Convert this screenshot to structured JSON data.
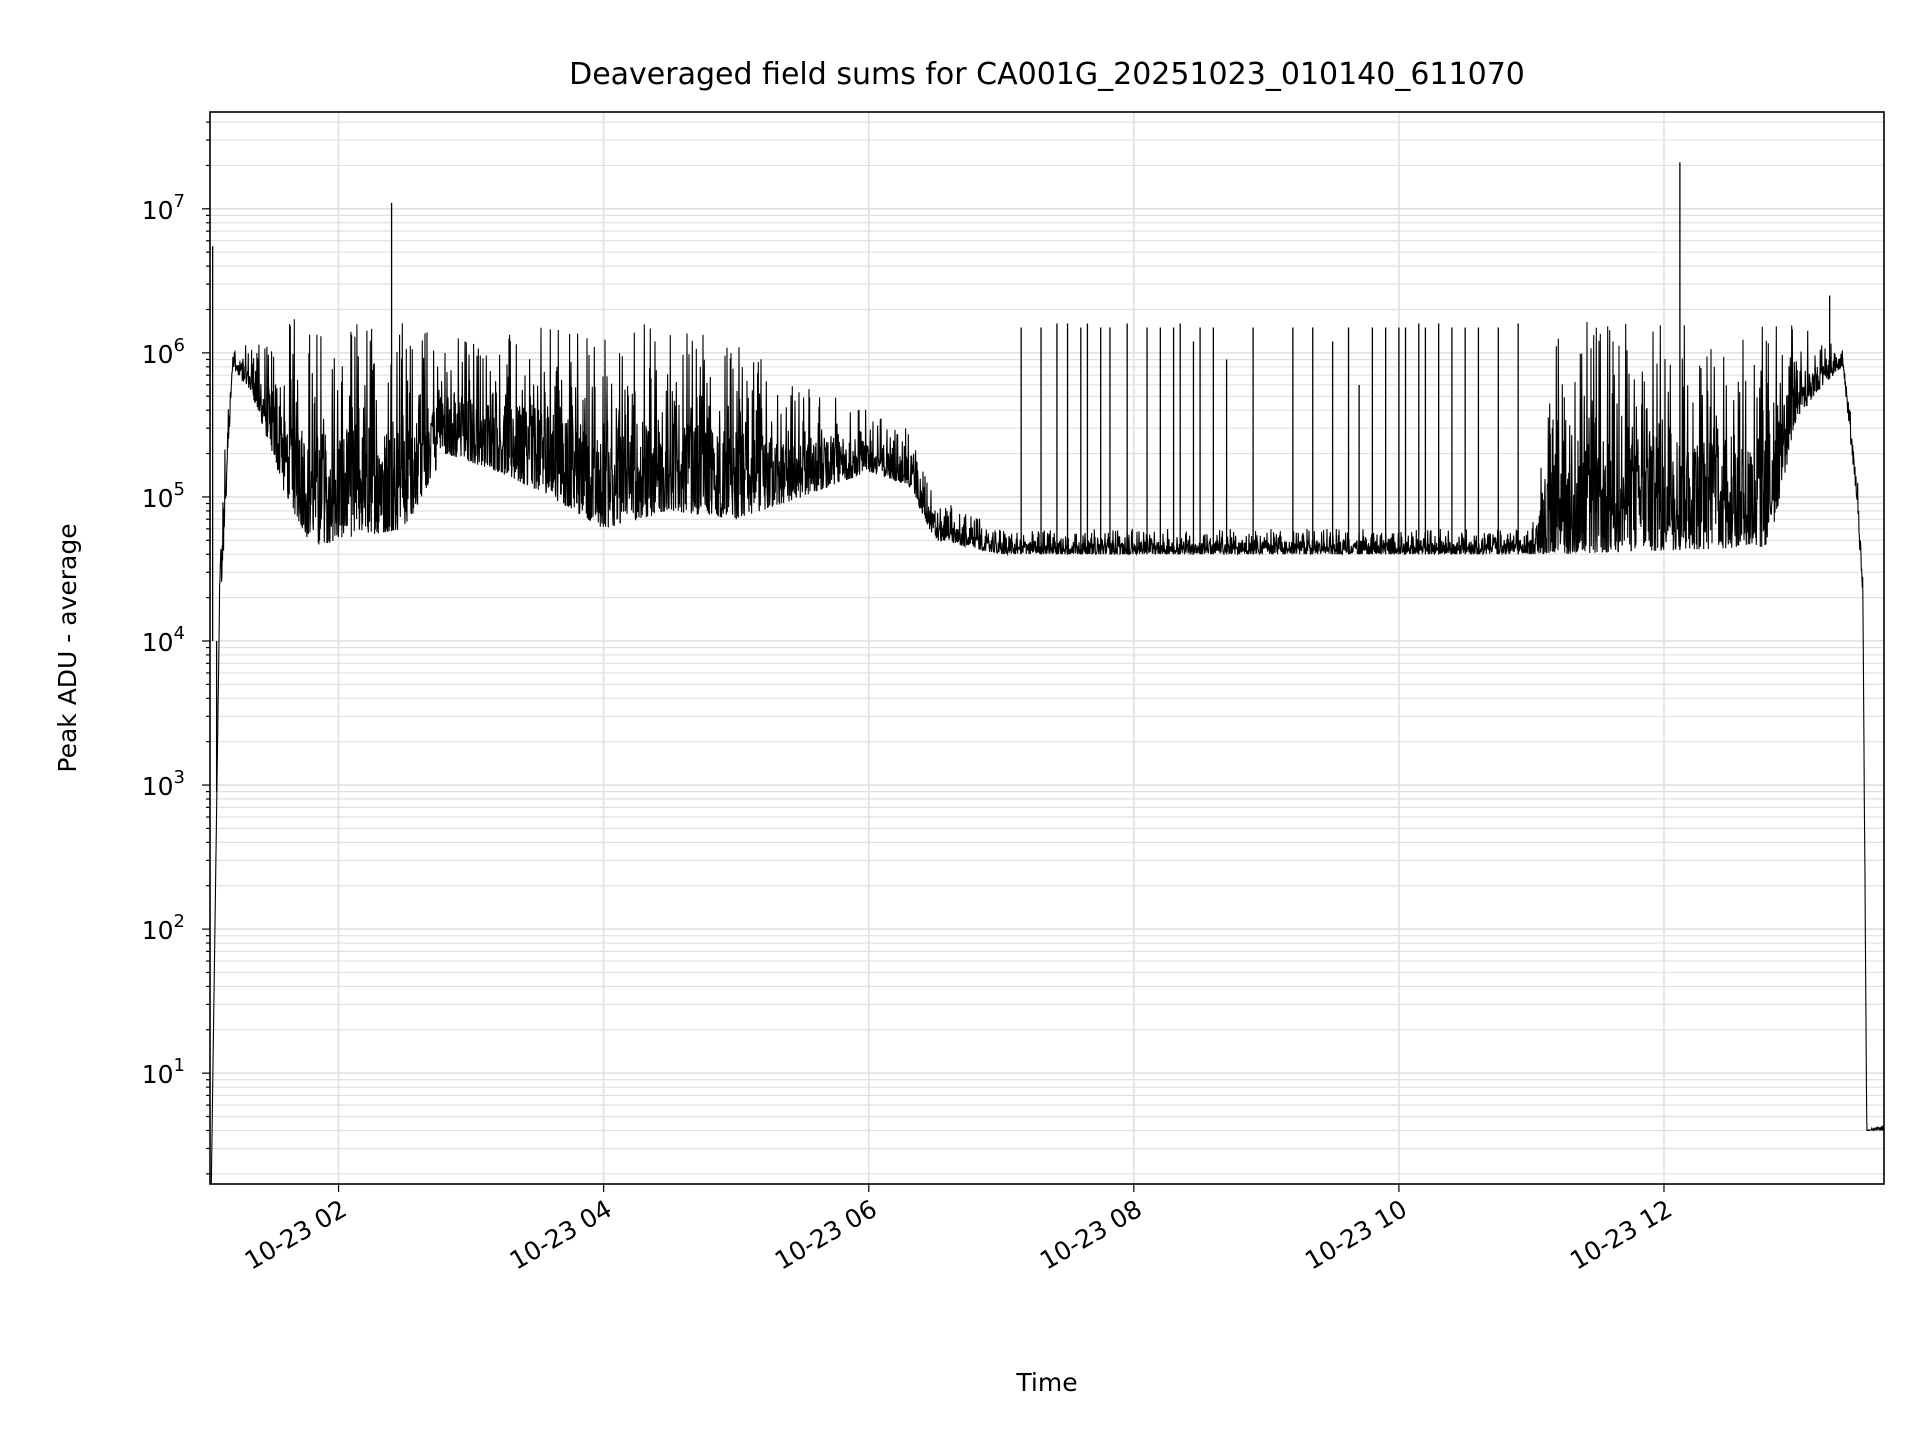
{
  "chart_data": {
    "type": "line",
    "title": "Deaveraged field sums for CA001G_20251023_010140_611070",
    "xlabel": "Time",
    "ylabel": "Peak ADU - average",
    "yscale": "log",
    "ylim": [
      1.7,
      47000000
    ],
    "xlim_hours": [
      1.03,
      13.66
    ],
    "grid": true,
    "line_color": "#000000",
    "grid_color": "#e0e0e0",
    "x_ticks": [
      {
        "hour": 2,
        "label": "10-23 02"
      },
      {
        "hour": 4,
        "label": "10-23 04"
      },
      {
        "hour": 6,
        "label": "10-23 06"
      },
      {
        "hour": 8,
        "label": "10-23 08"
      },
      {
        "hour": 10,
        "label": "10-23 10"
      },
      {
        "hour": 12,
        "label": "10-23 12"
      }
    ],
    "y_ticks": [
      {
        "exp": 1,
        "label": "10",
        "sup": "1"
      },
      {
        "exp": 2,
        "label": "10",
        "sup": "2"
      },
      {
        "exp": 3,
        "label": "10",
        "sup": "3"
      },
      {
        "exp": 4,
        "label": "10",
        "sup": "4"
      },
      {
        "exp": 5,
        "label": "10",
        "sup": "5"
      },
      {
        "exp": 6,
        "label": "10",
        "sup": "6"
      },
      {
        "exp": 7,
        "label": "10",
        "sup": "7"
      }
    ],
    "envelope_hour_low_high": [
      [
        1.1,
        10000,
        90000
      ],
      [
        1.2,
        800000,
        1200000
      ],
      [
        1.35,
        500000,
        1100000
      ],
      [
        1.5,
        200000,
        1500000
      ],
      [
        1.6,
        100000,
        1800000
      ],
      [
        1.8,
        45000,
        1800000
      ],
      [
        2.0,
        50000,
        1800000
      ],
      [
        2.5,
        60000,
        1900000
      ],
      [
        2.8,
        200000,
        1500000
      ],
      [
        3.2,
        150000,
        1300000
      ],
      [
        3.6,
        100000,
        1600000
      ],
      [
        4.0,
        60000,
        1800000
      ],
      [
        4.5,
        80000,
        1500000
      ],
      [
        5.0,
        70000,
        1200000
      ],
      [
        5.5,
        100000,
        600000
      ],
      [
        6.0,
        150000,
        400000
      ],
      [
        6.3,
        120000,
        300000
      ],
      [
        6.5,
        50000,
        100000
      ],
      [
        7.0,
        40000,
        60000
      ],
      [
        11.0,
        40000,
        60000
      ],
      [
        11.2,
        40000,
        1700000
      ],
      [
        12.8,
        45000,
        1700000
      ],
      [
        13.0,
        350000,
        1700000
      ],
      [
        13.2,
        600000,
        1200000
      ],
      [
        13.35,
        800000,
        1100000
      ],
      [
        13.45,
        100000,
        200000
      ],
      [
        13.5,
        20000,
        50000
      ],
      [
        13.53,
        4,
        4
      ],
      [
        13.66,
        4,
        4.5
      ]
    ],
    "spikes_hour_value": [
      [
        1.05,
        5500000
      ],
      [
        1.08,
        900
      ],
      [
        2.4,
        11000000
      ],
      [
        12.12,
        21000000
      ],
      [
        13.25,
        2500000
      ],
      [
        7.15,
        1500000
      ],
      [
        7.3,
        1500000
      ],
      [
        7.42,
        1600000
      ],
      [
        7.5,
        1600000
      ],
      [
        7.6,
        1500000
      ],
      [
        7.65,
        1600000
      ],
      [
        7.75,
        1500000
      ],
      [
        7.82,
        1500000
      ],
      [
        7.95,
        1600000
      ],
      [
        8.1,
        1500000
      ],
      [
        8.2,
        1500000
      ],
      [
        8.3,
        1500000
      ],
      [
        8.35,
        1600000
      ],
      [
        8.45,
        1200000
      ],
      [
        8.5,
        1500000
      ],
      [
        8.6,
        1500000
      ],
      [
        8.7,
        900000
      ],
      [
        8.9,
        1500000
      ],
      [
        9.2,
        1500000
      ],
      [
        9.35,
        1500000
      ],
      [
        9.5,
        1200000
      ],
      [
        9.62,
        1500000
      ],
      [
        9.7,
        600000
      ],
      [
        9.8,
        1500000
      ],
      [
        9.9,
        1500000
      ],
      [
        10.0,
        1500000
      ],
      [
        10.05,
        1500000
      ],
      [
        10.15,
        1600000
      ],
      [
        10.2,
        1500000
      ],
      [
        10.3,
        1600000
      ],
      [
        10.4,
        1500000
      ],
      [
        10.5,
        1500000
      ],
      [
        10.6,
        1500000
      ],
      [
        10.75,
        1500000
      ],
      [
        10.9,
        1600000
      ]
    ]
  }
}
